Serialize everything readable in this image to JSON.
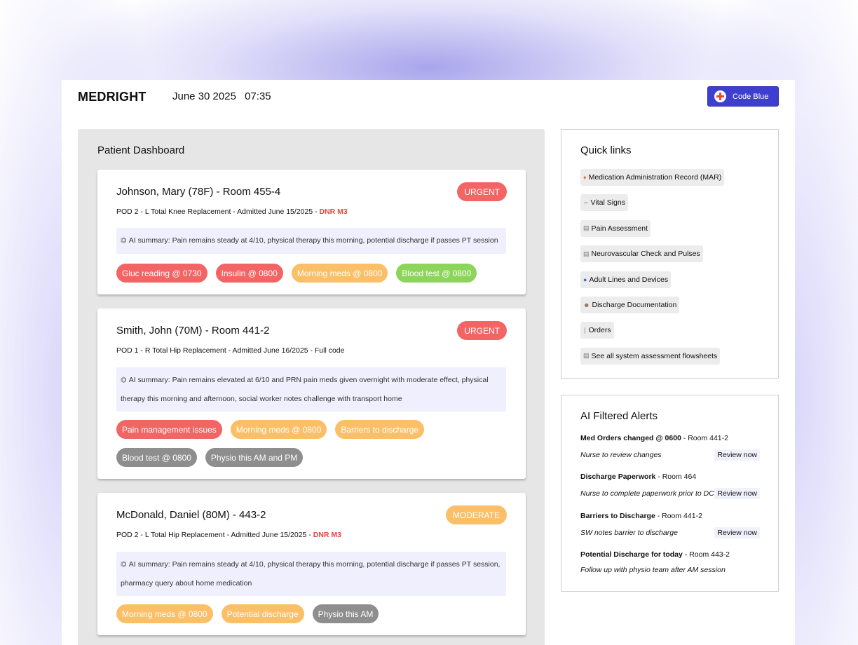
{
  "header": {
    "brand": "MEDRIGHT",
    "date": "June 30 2025",
    "time": "07:35",
    "code_blue_label": "Code Blue"
  },
  "dashboard": {
    "title": "Patient Dashboard",
    "patients": [
      {
        "name": "Johnson, Mary (78F) - Room 455-4",
        "info": "POD 2 - L Total Knee Replacement - Admitted June 15/2025 - ",
        "code_status": "DNR M3",
        "badge": "URGENT",
        "summary": "AI summary: Pain remains steady at 4/10, physical therapy this morning, potential discharge if passes PT session",
        "tags": [
          {
            "label": "Gluc reading @ 0730",
            "color": "#f36464"
          },
          {
            "label": "Insulin @ 0800",
            "color": "#f36464"
          },
          {
            "label": "Morning meds @ 0800",
            "color": "#fbbf67"
          },
          {
            "label": "Blood test @ 0800",
            "color": "#8dd55a"
          }
        ]
      },
      {
        "name": "Smith, John (70M) - Room 441-2",
        "info": "POD 1 - R Total Hip Replacement - Admitted June 16/2025 - Full code",
        "code_status": "",
        "badge": "URGENT",
        "summary": "AI summary: Pain remains elevated at 6/10 and PRN pain meds given overnight with moderate effect, physical therapy this morning and afternoon, social worker notes challenge with transport home",
        "tags": [
          {
            "label": "Pain management issues",
            "color": "#f36464"
          },
          {
            "label": "Morning meds @ 0800",
            "color": "#fbbf67"
          },
          {
            "label": "Barriers to discharge",
            "color": "#fbbf67"
          },
          {
            "label": "Blood test @ 0800",
            "color": "#8e8e8e"
          },
          {
            "label": "Physio this AM and PM",
            "color": "#8e8e8e"
          }
        ]
      },
      {
        "name": "McDonald, Daniel (80M) - 443-2",
        "info": "POD 2 - L Total Hip Replacement - Admitted June 15/2025 - ",
        "code_status": "DNR M3",
        "badge": "MODERATE",
        "summary": "AI summary: Pain remains steady at 4/10, physical therapy this morning, potential discharge if passes PT session, pharmacy query about home medication",
        "tags": [
          {
            "label": "Morning meds @ 0800",
            "color": "#fbbf67"
          },
          {
            "label": "Potential discharge",
            "color": "#fbbf67"
          },
          {
            "label": "Physio this AM",
            "color": "#8e8e8e"
          }
        ]
      }
    ]
  },
  "quick_links": {
    "title": "Quick links",
    "items": [
      {
        "icon": "pill-icon",
        "label": "Medication Administration Record (MAR)"
      },
      {
        "icon": "stethoscope-icon",
        "label": "Vital Signs"
      },
      {
        "icon": "clipboard-icon",
        "label": "Pain Assessment"
      },
      {
        "icon": "clipboard-icon",
        "label": "Neurovascular Check and Pulses"
      },
      {
        "icon": "droplet-icon",
        "label": "Adult Lines and Devices"
      },
      {
        "icon": "doctor-icon",
        "label": "Discharge Documentation"
      },
      {
        "icon": "syringe-icon",
        "label": "Orders"
      },
      {
        "icon": "clipboard-icon",
        "label": "See all system assessment flowsheets"
      }
    ]
  },
  "alerts": {
    "title": "AI Filtered Alerts",
    "items": [
      {
        "title": "Med Orders changed @ 0600",
        "room": " - Room 441-2",
        "note": "Nurse to review changes",
        "action": "Review now"
      },
      {
        "title": "Discharge Paperwork",
        "room": " - Room 464",
        "note": "Nurse to complete paperwork prior to DC",
        "action": "Review now"
      },
      {
        "title": "Barriers to Discharge",
        "room": " - Room 441-2",
        "note": "SW notes barrier to discharge",
        "action": "Review now"
      },
      {
        "title": "Potential Discharge for today",
        "room": " - Room 443-2",
        "note": "Follow up with physio team after AM session",
        "action": ""
      }
    ]
  }
}
